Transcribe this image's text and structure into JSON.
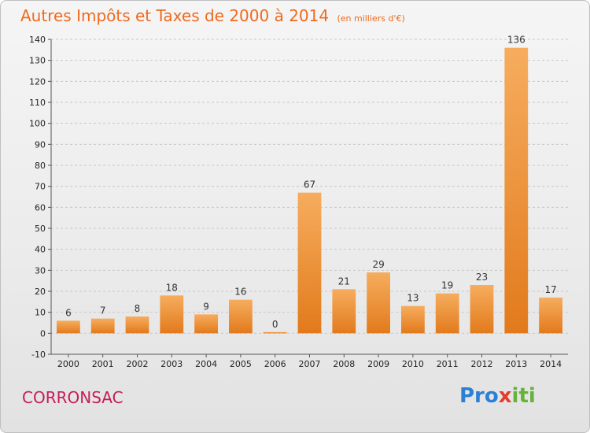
{
  "title": "Autres Impôts et Taxes de 2000 à 2014",
  "unit": "(en milliers d'€)",
  "commune": "CORRONSAC",
  "logo": {
    "p1": "Pro",
    "p2": "x",
    "p3": "iti"
  },
  "colors": {
    "bar_light": "#f6ad5e",
    "bar_dark": "#e27a1c",
    "title": "#ee6a1f",
    "commune": "#c41e5a"
  },
  "chart_data": {
    "type": "bar",
    "categories": [
      "2000",
      "2001",
      "2002",
      "2003",
      "2004",
      "2005",
      "2006",
      "2007",
      "2008",
      "2009",
      "2010",
      "2011",
      "2012",
      "2013",
      "2014"
    ],
    "values": [
      6,
      7,
      8,
      18,
      9,
      16,
      0,
      67,
      21,
      29,
      13,
      19,
      23,
      136,
      17
    ],
    "ylim": [
      -10,
      140
    ],
    "yticks": [
      -10,
      0,
      10,
      20,
      30,
      40,
      50,
      60,
      70,
      80,
      90,
      100,
      110,
      120,
      130,
      140
    ],
    "title": "Autres Impôts et Taxes de 2000 à 2014",
    "xlabel": "",
    "ylabel": "",
    "grid": "horizontal dashed"
  }
}
